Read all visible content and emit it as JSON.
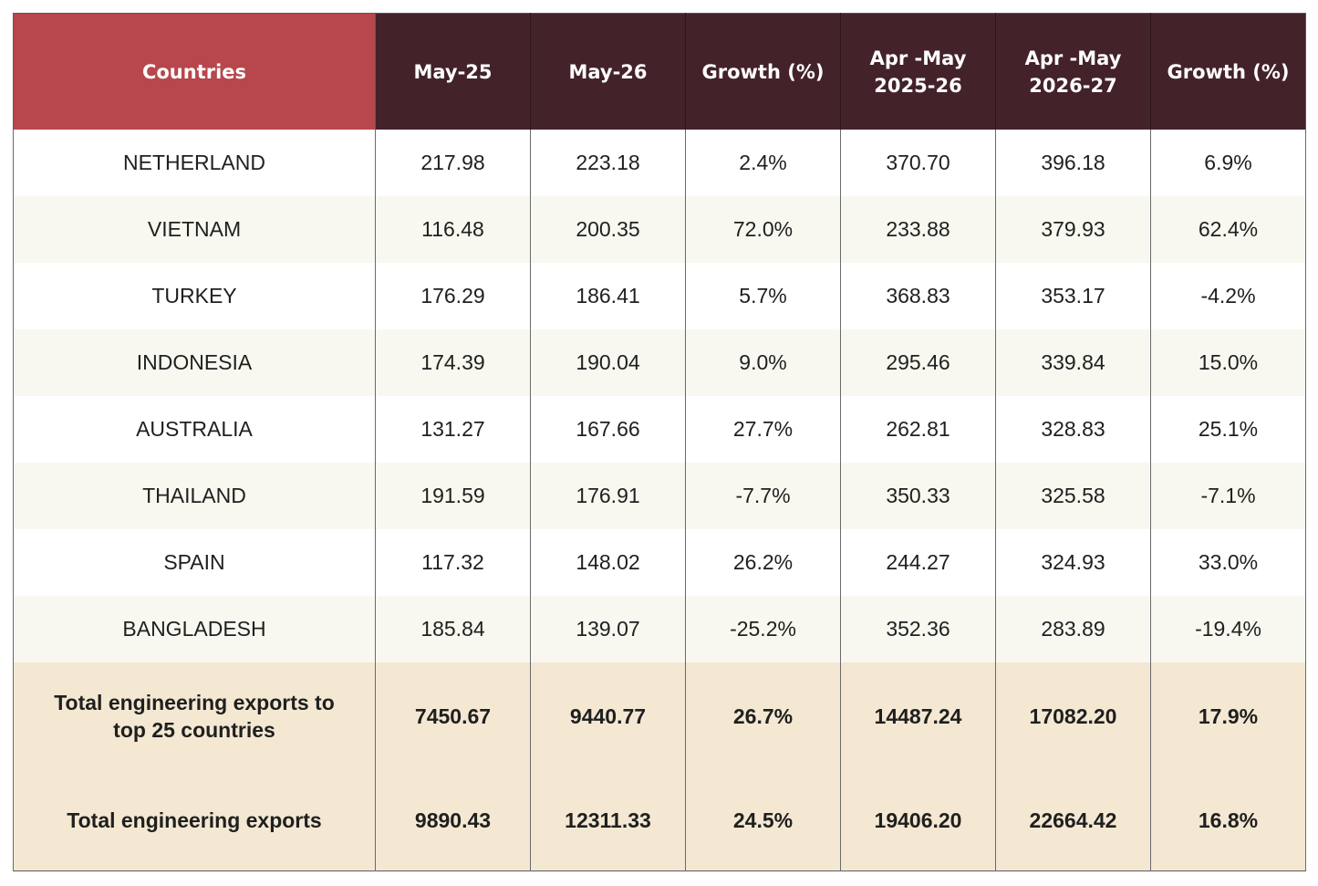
{
  "chart_data": {
    "type": "table",
    "columns": [
      "Countries",
      "May-25",
      "May-26",
      "Growth (%)",
      "Apr -May 2025-26",
      "Apr -May 2026-27",
      "Growth (%)"
    ],
    "header_lines": [
      [
        "Countries"
      ],
      [
        "May-25"
      ],
      [
        "May-26"
      ],
      [
        "Growth (%)"
      ],
      [
        "Apr -May",
        "2025-26"
      ],
      [
        "Apr -May",
        "2026-27"
      ],
      [
        "Growth (%)"
      ]
    ],
    "rows": [
      [
        "NETHERLAND",
        "217.98",
        "223.18",
        "2.4%",
        "370.70",
        "396.18",
        "6.9%"
      ],
      [
        "VIETNAM",
        "116.48",
        "200.35",
        "72.0%",
        "233.88",
        "379.93",
        "62.4%"
      ],
      [
        "TURKEY",
        "176.29",
        "186.41",
        "5.7%",
        "368.83",
        "353.17",
        "-4.2%"
      ],
      [
        "INDONESIA",
        "174.39",
        "190.04",
        "9.0%",
        "295.46",
        "339.84",
        "15.0%"
      ],
      [
        "AUSTRALIA",
        "131.27",
        "167.66",
        "27.7%",
        "262.81",
        "328.83",
        "25.1%"
      ],
      [
        "THAILAND",
        "191.59",
        "176.91",
        "-7.7%",
        "350.33",
        "325.58",
        "-7.1%"
      ],
      [
        "SPAIN",
        "117.32",
        "148.02",
        "26.2%",
        "244.27",
        "324.93",
        "33.0%"
      ],
      [
        "BANGLADESH",
        "185.84",
        "139.07",
        "-25.2%",
        "352.36",
        "283.89",
        "-19.4%"
      ]
    ],
    "totals": [
      {
        "label_lines": [
          "Total engineering exports to",
          "top 25 countries"
        ],
        "values": [
          "7450.67",
          "9440.77",
          "26.7%",
          "14487.24",
          "17082.20",
          "17.9%"
        ]
      },
      {
        "label_lines": [
          "Total engineering exports"
        ],
        "values": [
          "9890.43",
          "12311.33",
          "24.5%",
          "19406.20",
          "22664.42",
          "16.8%"
        ]
      }
    ]
  },
  "colors": {
    "header_country_bg": "#b7474d",
    "header_bg": "#43222a",
    "row_alt_bg": "#f8f8f1",
    "total_bg": "#f4e8d3",
    "text": "#1f1f1f"
  }
}
